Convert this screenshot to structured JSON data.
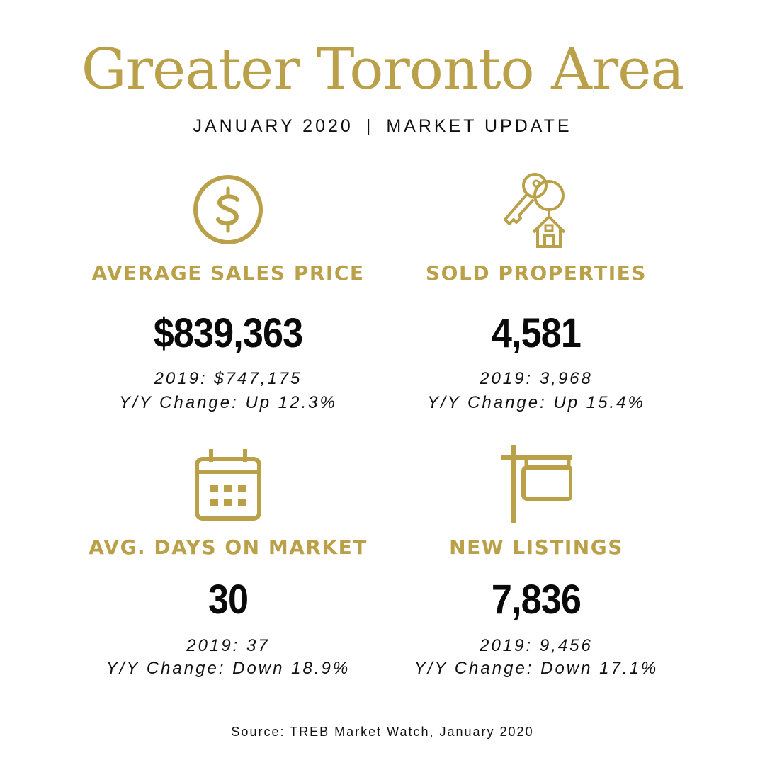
{
  "header": {
    "title": "Greater Toronto Area",
    "period": "JANUARY 2020",
    "separator": "|",
    "subtitle": "MARKET UPDATE"
  },
  "stats": [
    {
      "icon": "dollar-circle-icon",
      "label": "AVERAGE SALES PRICE",
      "value": "$839,363",
      "previous": "2019: $747,175",
      "change": "Y/Y Change: Up 12.3%"
    },
    {
      "icon": "key-house-icon",
      "label": "SOLD PROPERTIES",
      "value": "4,581",
      "previous": "2019: 3,968",
      "change": "Y/Y Change: Up 15.4%"
    },
    {
      "icon": "calendar-icon",
      "label": "AVG. DAYS ON MARKET",
      "value": "30",
      "previous": "2019: 37",
      "change": "Y/Y Change: Down 18.9%"
    },
    {
      "icon": "sign-post-icon",
      "label": "NEW LISTINGS",
      "value": "7,836",
      "previous": "2019: 9,456",
      "change": "Y/Y Change: Down 17.1%"
    }
  ],
  "footer": {
    "source": "Source: TREB Market Watch, January 2020"
  },
  "colors": {
    "accent_gold": "#b9a049",
    "text": "#111111",
    "background": "#ffffff"
  }
}
